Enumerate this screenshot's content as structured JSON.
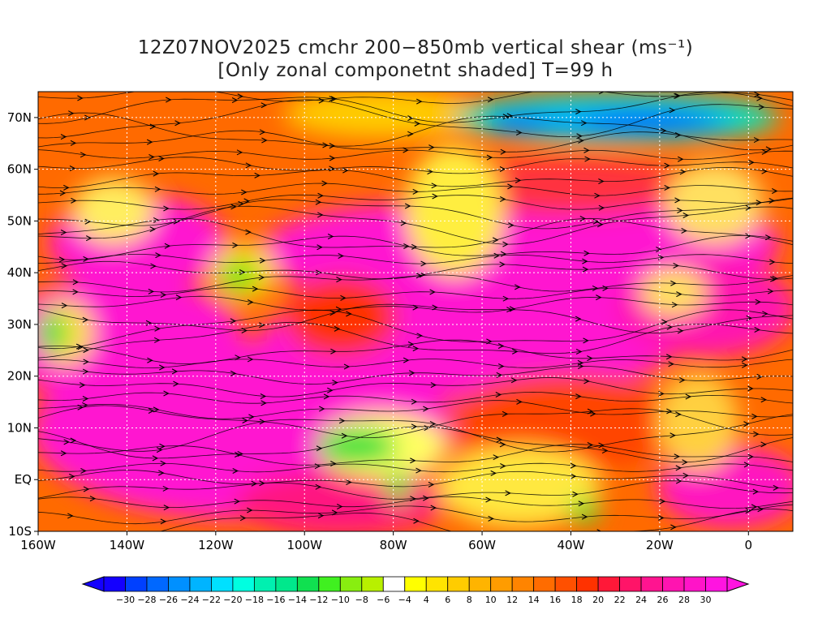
{
  "title": {
    "line1": "12Z07NOV2025 cmchr 200−850mb vertical shear (ms⁻¹)",
    "line2": "[Only zonal componetnt shaded] T=99 h"
  },
  "map": {
    "lat_labels": [
      "70N",
      "60N",
      "50N",
      "40N",
      "30N",
      "20N",
      "10N",
      "EQ",
      "10S"
    ],
    "lon_labels": [
      "160W",
      "140W",
      "120W",
      "100W",
      "80W",
      "60W",
      "40W",
      "20W",
      "0"
    ],
    "lat_values": [
      70,
      60,
      50,
      40,
      30,
      20,
      10,
      0,
      -10
    ],
    "lon_values": [
      -160,
      -140,
      -120,
      -100,
      -80,
      -60,
      -40,
      -20,
      0
    ],
    "lon_range": [
      -160,
      10
    ],
    "lat_range": [
      -10,
      75
    ],
    "field": "zonal component of 200-850mb vertical shear",
    "overlay": "shear streamlines",
    "grid": true
  },
  "colorbar": {
    "labels": [
      "−30",
      "−28",
      "−26",
      "−24",
      "−22",
      "−20",
      "−18",
      "−16",
      "−14",
      "−12",
      "−10",
      "−8",
      "−6",
      "−4",
      "4",
      "6",
      "8",
      "10",
      "12",
      "14",
      "16",
      "18",
      "20",
      "22",
      "24",
      "26",
      "28",
      "30"
    ],
    "colors": [
      "#1400ff",
      "#0040ff",
      "#0068ff",
      "#0090ff",
      "#00b4ff",
      "#00e0ff",
      "#00ffe0",
      "#00f0b0",
      "#00e88c",
      "#10e050",
      "#40f020",
      "#88ee10",
      "#b8f000",
      "#ffffff",
      "#ffff00",
      "#ffe400",
      "#ffcc00",
      "#ffb400",
      "#ff9c00",
      "#ff8400",
      "#ff6c00",
      "#ff5000",
      "#ff3200",
      "#ff1838",
      "#ff1468",
      "#ff1490",
      "#ff14b0",
      "#ff14c8",
      "#ff14e0"
    ]
  }
}
